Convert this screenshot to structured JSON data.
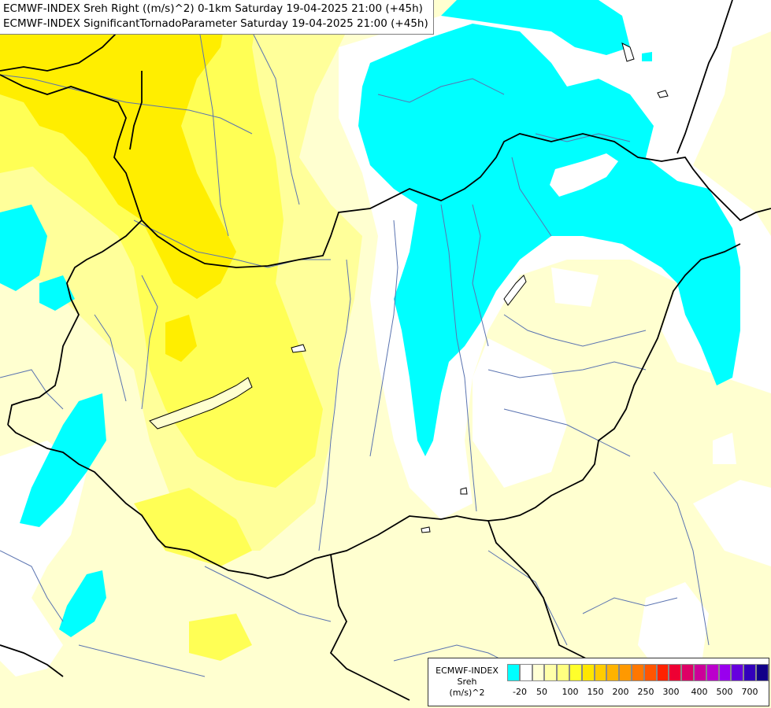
{
  "header": {
    "line1": "ECMWF-INDEX Sreh Right ((m/s)^2) 0-1km Saturday 19-04-2025 21:00 (+45h)",
    "line2": "ECMWF-INDEX SignificantTornadoParameter Saturday 19-04-2025 21:00 (+45h)"
  },
  "legend": {
    "line1": "ECMWF-INDEX",
    "line2": "Sreh",
    "line3": "(m/s)^2",
    "colors": [
      "#00ffff",
      "#ffffff",
      "#ffffd5",
      "#ffffaa",
      "#ffff80",
      "#ffff2b",
      "#ffe600",
      "#ffcc00",
      "#ffb300",
      "#ff9900",
      "#ff7700",
      "#ff5500",
      "#ff2200",
      "#ee0033",
      "#dd0066",
      "#cc0099",
      "#bb00cc",
      "#9900ee",
      "#6600dd",
      "#3300bb",
      "#110088"
    ],
    "ticks": [
      "-20",
      "50",
      "100",
      "150",
      "200",
      "250",
      "300",
      "400",
      "500",
      "700"
    ]
  },
  "map": {
    "palette": {
      "background": "#ffffd0",
      "pale_yellow": "#ffff9a",
      "yellow": "#ffff55",
      "strong_yellow": "#ffee00",
      "cyan": "#00ffff",
      "white": "#ffffff",
      "river": "#5a73b0",
      "border": "#000000"
    }
  }
}
